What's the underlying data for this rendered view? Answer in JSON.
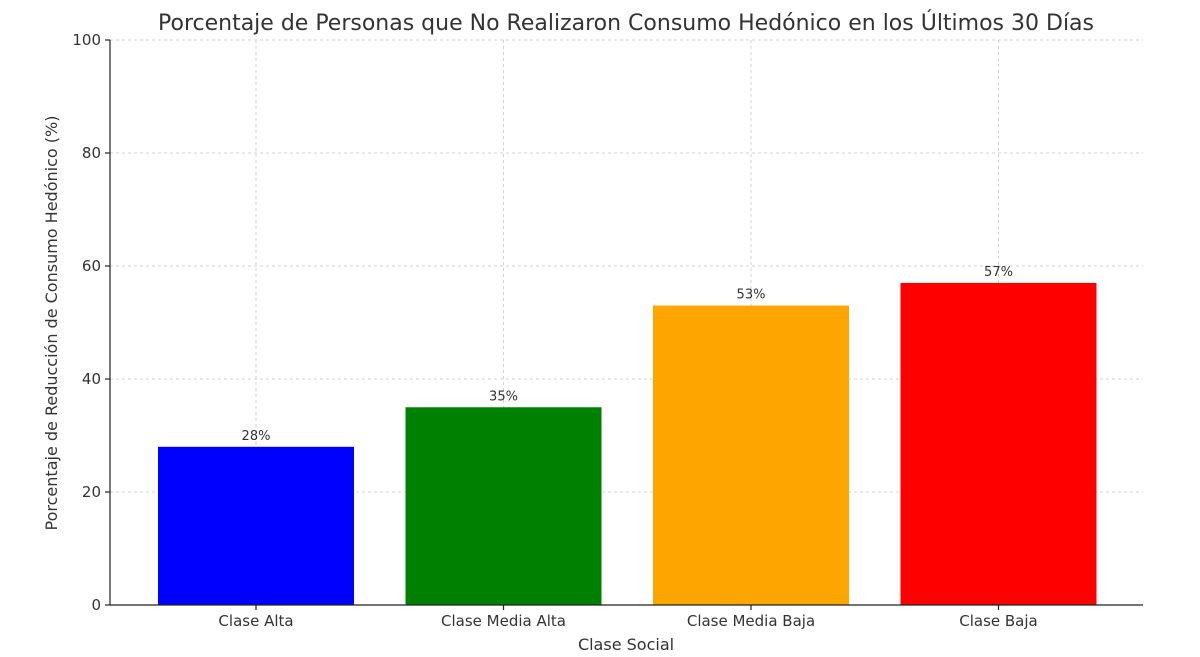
{
  "chart_data": {
    "type": "bar",
    "title": "Porcentaje de Personas que No Realizaron Consumo Hedónico en los Últimos 30 Días",
    "xlabel": "Clase Social",
    "ylabel": "Porcentaje de Reducción de Consumo Hedónico (%)",
    "categories": [
      "Clase Alta",
      "Clase Media Alta",
      "Clase Media Baja",
      "Clase Baja"
    ],
    "values": [
      28,
      35,
      53,
      57
    ],
    "data_labels": [
      "28%",
      "35%",
      "53%",
      "57%"
    ],
    "colors": [
      "#0000ff",
      "#008000",
      "#ffa500",
      "#ff0000"
    ],
    "ylim": [
      0,
      100
    ],
    "yticks": [
      0,
      20,
      40,
      60,
      80,
      100
    ],
    "grid": true
  }
}
